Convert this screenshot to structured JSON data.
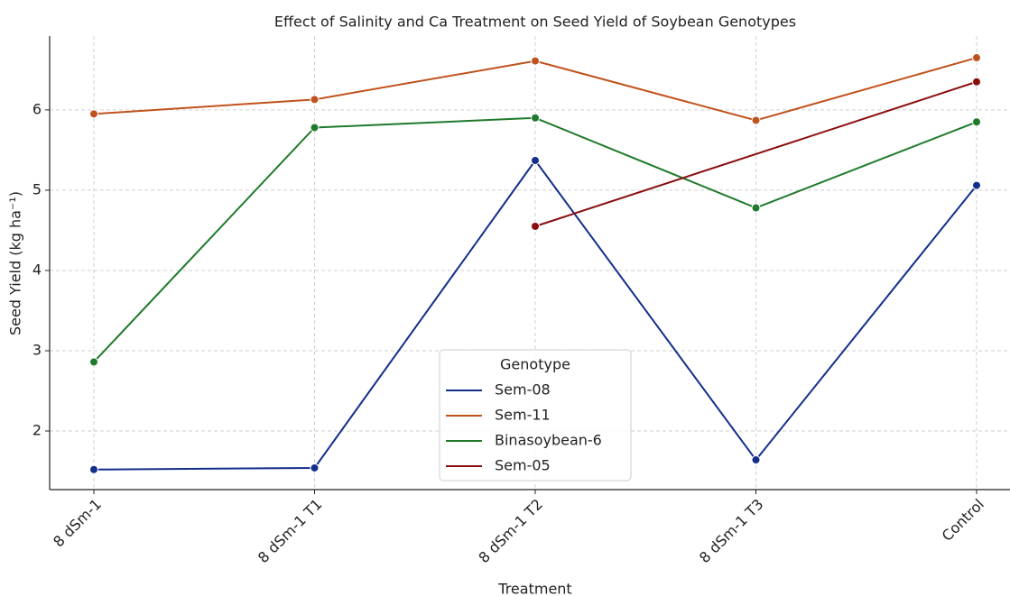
{
  "chart_data": {
    "type": "line",
    "title": "Effect of Salinity and Ca Treatment on Seed Yield of Soybean Genotypes",
    "x_label": "Treatment",
    "y_label": "Seed Yield (kg ha⁻¹)",
    "categories": [
      "8 dSm-1",
      "8 dSm-1 T1",
      "8 dSm-1 T2",
      "8 dSm-1 T3",
      "Control"
    ],
    "series": [
      {
        "name": "Sem-08",
        "color": "#142e8c",
        "values": [
          1.52,
          1.54,
          5.37,
          1.64,
          5.06
        ]
      },
      {
        "name": "Sem-11",
        "color": "#c0521c",
        "values": [
          5.95,
          6.13,
          6.61,
          5.87,
          6.65
        ]
      },
      {
        "name": "Binasoybean-6",
        "color": "#1f7a2b",
        "values": [
          2.86,
          5.78,
          5.9,
          4.78,
          5.85
        ]
      },
      {
        "name": "Sem-05",
        "color": "#8a0e0e",
        "values": [
          null,
          null,
          4.55,
          null,
          6.35
        ]
      }
    ],
    "legend_title": "Genotype",
    "legend_position": "lower center",
    "ylim": [
      1.27,
      6.92
    ],
    "yticks": [
      2,
      3,
      4,
      5,
      6
    ],
    "grid": true
  }
}
